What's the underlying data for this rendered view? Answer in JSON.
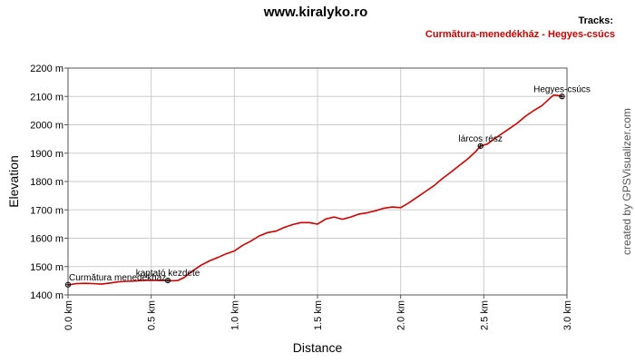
{
  "chart_data": {
    "type": "line",
    "title": "www.kiralyko.ro",
    "legend_heading": "Tracks:",
    "legend_placement": "top-right",
    "series": [
      {
        "name": "Curmătura-menedékház - Hegyes-csúcs",
        "color": "#cc0000",
        "x": [
          0,
          0.05,
          0.1,
          0.15,
          0.2,
          0.25,
          0.3,
          0.35,
          0.4,
          0.45,
          0.5,
          0.55,
          0.6,
          0.63,
          0.66,
          0.7,
          0.75,
          0.8,
          0.85,
          0.9,
          0.95,
          1.0,
          1.05,
          1.1,
          1.15,
          1.2,
          1.25,
          1.3,
          1.35,
          1.4,
          1.45,
          1.5,
          1.55,
          1.6,
          1.65,
          1.7,
          1.75,
          1.8,
          1.85,
          1.9,
          1.95,
          2.0,
          2.05,
          2.1,
          2.15,
          2.2,
          2.25,
          2.3,
          2.35,
          2.4,
          2.45,
          2.48,
          2.52,
          2.55,
          2.6,
          2.65,
          2.7,
          2.75,
          2.8,
          2.85,
          2.9,
          2.92,
          2.95,
          2.97
        ],
        "y": [
          1435,
          1440,
          1441,
          1440,
          1438,
          1442,
          1446,
          1448,
          1449,
          1451,
          1452,
          1451,
          1451,
          1450,
          1451,
          1462,
          1485,
          1505,
          1520,
          1532,
          1545,
          1555,
          1575,
          1590,
          1608,
          1620,
          1625,
          1638,
          1648,
          1655,
          1655,
          1650,
          1668,
          1675,
          1667,
          1675,
          1685,
          1690,
          1697,
          1706,
          1710,
          1708,
          1725,
          1745,
          1765,
          1785,
          1810,
          1832,
          1855,
          1878,
          1905,
          1925,
          1932,
          1945,
          1965,
          1985,
          2005,
          2030,
          2050,
          2068,
          2095,
          2105,
          2103,
          2100
        ]
      }
    ],
    "waypoints": [
      {
        "label": "Curmătura menedékház",
        "x": 0.0,
        "y": 1436
      },
      {
        "label": "kaptató kezdete",
        "x": 0.6,
        "y": 1451
      },
      {
        "label": "lárcos rész",
        "x": 2.48,
        "y": 1925
      },
      {
        "label": "Hegyes-csúcs",
        "x": 2.97,
        "y": 2100
      }
    ],
    "xlabel": "Distance",
    "ylabel": "Elevation",
    "xlim": [
      0,
      3.0
    ],
    "ylim": [
      1400,
      2200
    ],
    "x_ticks": [
      0,
      0.5,
      1.0,
      1.5,
      2.0,
      2.5,
      3.0
    ],
    "x_tick_labels": [
      "0.0 km",
      "0.5 km",
      "1.0 km",
      "1.5 km",
      "2.0 km",
      "2.5 km",
      "3.0 km"
    ],
    "y_ticks": [
      1400,
      1500,
      1600,
      1700,
      1800,
      1900,
      2000,
      2100,
      2200
    ],
    "y_tick_labels": [
      "1400 m",
      "1500 m",
      "1600 m",
      "1700 m",
      "1800 m",
      "1900 m",
      "2000 m",
      "2100 m",
      "2200 m"
    ],
    "grid": true,
    "credit": "created by GPSVisualizer.com"
  }
}
